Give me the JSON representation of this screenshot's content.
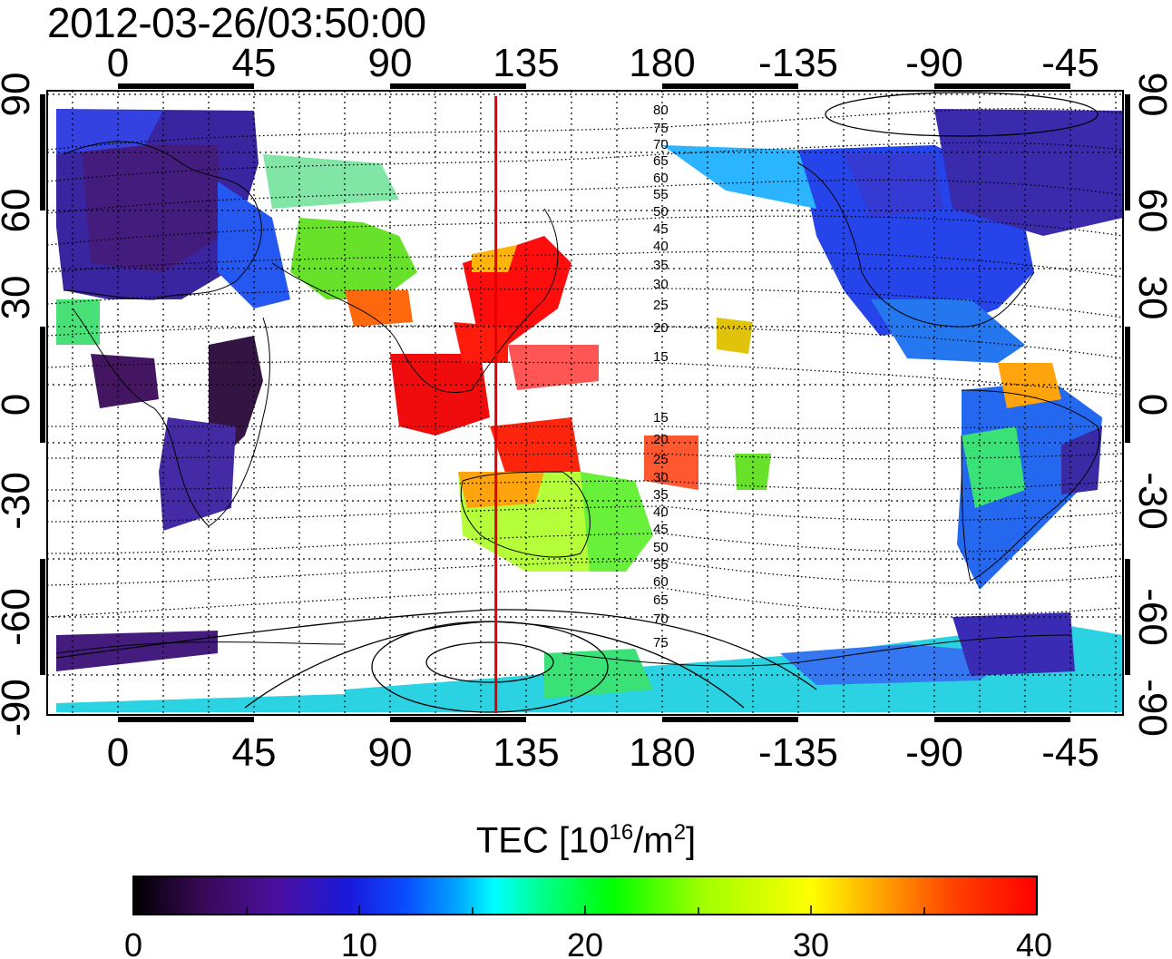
{
  "title": "2012-03-26/03:50:00",
  "map": {
    "top_lon_labels": [
      "0",
      "45",
      "90",
      "135",
      "180",
      "-135",
      "-90",
      "-45"
    ],
    "bottom_lon_labels": [
      "0",
      "45",
      "90",
      "135",
      "180",
      "-135",
      "-90",
      "-45"
    ],
    "left_lat_labels": [
      "90",
      "60",
      "30",
      "0",
      "-30",
      "-60",
      "-90"
    ],
    "right_lat_labels": [
      "90",
      "60",
      "30",
      "0",
      "-30",
      "-60",
      "-90"
    ],
    "meridian_marker_lon": 125,
    "meridian_marker_color": "#e00000",
    "contour_labels_north": [
      "80",
      "75",
      "70",
      "65",
      "60",
      "55",
      "50",
      "45",
      "40",
      "35",
      "30",
      "25",
      "20",
      "15"
    ],
    "contour_labels_south": [
      "15",
      "20",
      "25",
      "30",
      "35",
      "40",
      "45",
      "50",
      "55",
      "60",
      "65",
      "70",
      "75"
    ]
  },
  "colorbar": {
    "title_prefix": "TEC  [10",
    "title_exp": "16",
    "title_mid": "/m",
    "title_exp2": "2",
    "title_suffix": "]",
    "min": 0,
    "max": 40,
    "tick_labels": [
      "0",
      "10",
      "20",
      "30",
      "40"
    ],
    "colors": [
      "#000000",
      "#3a0a5a",
      "#4b0fa0",
      "#1a1adc",
      "#0a4cff",
      "#00a8ff",
      "#00ffff",
      "#00ff90",
      "#00ff00",
      "#a0ff00",
      "#ffff00",
      "#ffa000",
      "#ff4000",
      "#ff0000"
    ]
  }
}
